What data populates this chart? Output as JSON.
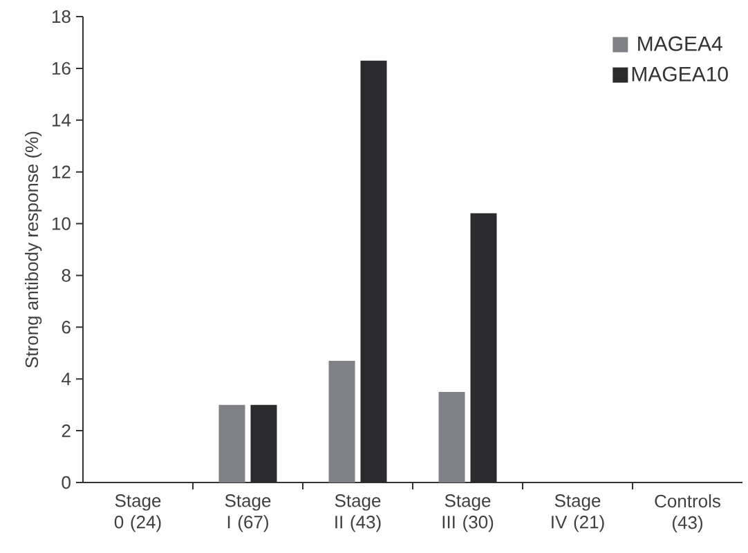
{
  "chart_data": {
    "type": "bar",
    "ylabel": "Strong antibody response (%)",
    "categories": [
      "Stage 0 (24)",
      "Stage I (67)",
      "Stage II (43)",
      "Stage III (30)",
      "Stage IV (21)",
      "Controls (43)"
    ],
    "series": [
      {
        "name": "MAGEA4",
        "color": "#7f8187",
        "values": [
          0,
          3.0,
          4.7,
          3.5,
          0,
          0
        ]
      },
      {
        "name": "MAGEA10",
        "color": "#2b2a2c",
        "values": [
          0,
          3.0,
          16.3,
          10.4,
          0,
          0
        ]
      }
    ],
    "ylim": [
      0,
      18
    ],
    "yticks": [
      0,
      2,
      4,
      6,
      8,
      10,
      12,
      14,
      16,
      18
    ],
    "legend": "top right"
  }
}
